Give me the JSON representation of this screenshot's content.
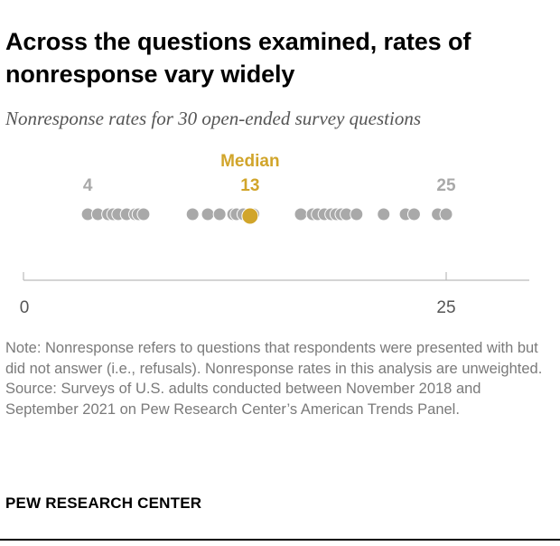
{
  "title": "Across the questions examined, rates of nonresponse vary widely",
  "subtitle": "Nonresponse rates for 30 open-ended survey questions",
  "note": "Note: Nonresponse refers to questions that respondents were presented with but did not answer (i.e., refusals). Nonresponse rates in this analysis are unweighted.",
  "source": "Source: Surveys of U.S. adults conducted between November 2018 and September 2021 on Pew Research Center’s American Trends Panel.",
  "brand": "PEW RESEARCH CENTER",
  "colors": {
    "dot": "#a9a9a9",
    "median": "#d1a52b",
    "axis": "#bbbbbb",
    "label_gray": "#999999",
    "tick_text": "#555555"
  },
  "chart_data": {
    "type": "scatter",
    "title": "Across the questions examined, rates of nonresponse vary widely",
    "subtitle": "Nonresponse rates for 30 open-ended survey questions",
    "xlim": [
      0,
      30
    ],
    "x_ticks": [
      0,
      25
    ],
    "x_tick_labels": [
      "0",
      "25"
    ],
    "grid": false,
    "legend": "none",
    "series": [
      {
        "values": [
          3.8,
          4.4,
          5.0,
          5.3,
          5.6,
          6.1,
          6.6,
          6.8,
          7.1,
          10.0,
          10.9,
          11.6,
          12.4,
          12.6,
          13.0,
          13.6,
          16.4,
          17.1,
          17.4,
          17.8,
          18.2,
          18.5,
          18.8,
          19.1,
          19.7,
          21.3,
          22.6,
          23.1,
          24.5,
          25.0
        ]
      }
    ],
    "annotations": [
      {
        "label": "Median",
        "value_label": "13",
        "x": 13.4,
        "color": "#d1a52b"
      },
      {
        "label": "",
        "value_label": "4",
        "x": 3.8,
        "color": "#a9a9a9"
      },
      {
        "label": "",
        "value_label": "25",
        "x": 25.0,
        "color": "#a9a9a9"
      }
    ]
  }
}
